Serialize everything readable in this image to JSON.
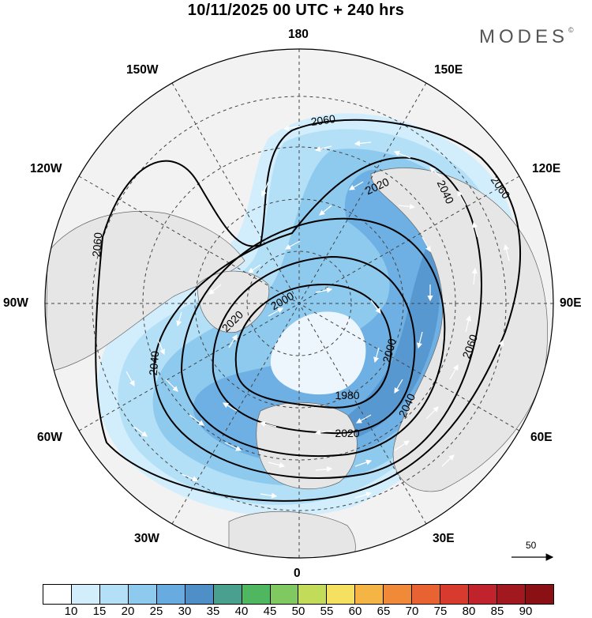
{
  "title": "10/11/2025  00 UTC  + 240 hrs",
  "brand": {
    "name": "MODES",
    "mark": "©"
  },
  "longitude_labels": {
    "top": "180",
    "bottom": "0",
    "left": "90W",
    "right": "90E",
    "upper_left_1": "150W",
    "upper_left_2": "120W",
    "upper_right_1": "150E",
    "upper_right_2": "120E",
    "lower_left_1": "60W",
    "lower_left_2": "30W",
    "lower_right_1": "60E",
    "lower_right_2": "30E"
  },
  "contour_labels": [
    "2060",
    "2060",
    "2060",
    "2060",
    "2040",
    "2040",
    "2040",
    "2020",
    "2020",
    "2020",
    "2000",
    "2000",
    "1980"
  ],
  "wind_reference": {
    "label": "50"
  },
  "colorbar": {
    "ticks": [
      "10",
      "15",
      "20",
      "25",
      "30",
      "35",
      "40",
      "45",
      "50",
      "55",
      "60",
      "65",
      "70",
      "75",
      "80",
      "85",
      "90"
    ],
    "colors": [
      "#ffffff",
      "#d2eefc",
      "#b4e0f7",
      "#8ec9ee",
      "#68abe0",
      "#4f8fc8",
      "#4aa08f",
      "#4fb760",
      "#80c860",
      "#c2dc5a",
      "#f5e060",
      "#f4b545",
      "#f08a38",
      "#e86232",
      "#d83a2e",
      "#c0232b",
      "#a2181f",
      "#8a1015"
    ]
  },
  "colors": {
    "land": "#eeeeee",
    "coast": "#555555",
    "grid": "#444444",
    "contour": "#000000",
    "wind_arrow": "#ffffff"
  }
}
